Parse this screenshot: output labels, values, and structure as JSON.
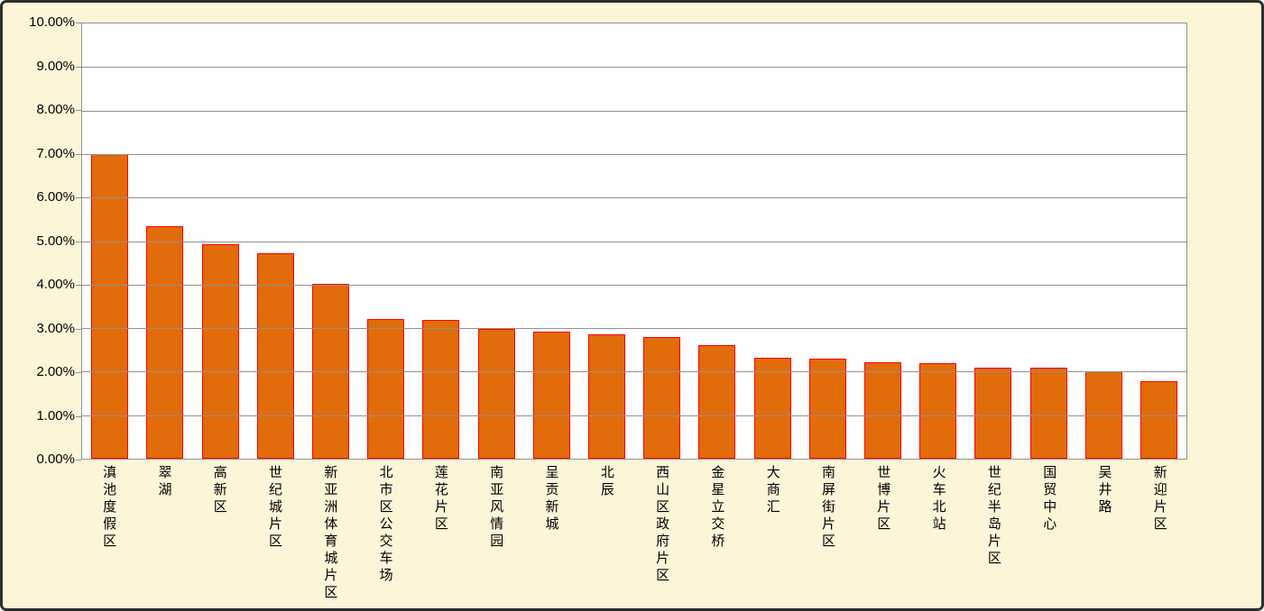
{
  "chart_data": {
    "type": "bar",
    "title": "",
    "xlabel": "",
    "ylabel": "",
    "legend": "none",
    "grid": "horizontal",
    "value_format": "percent",
    "ylim": [
      0,
      10
    ],
    "y_tick_step": 1,
    "y_tick_labels": [
      "10.00%",
      "9.00%",
      "8.00%",
      "7.00%",
      "6.00%",
      "5.00%",
      "4.00%",
      "3.00%",
      "2.00%",
      "1.00%",
      "0.00%"
    ],
    "categories": [
      "滇池度假区",
      "翠湖",
      "高新区",
      "世纪城片区",
      "新亚洲体育城片区",
      "北市区公交车场",
      "莲花片区",
      "南亚风情园",
      "呈贡新城",
      "北辰",
      "西山区政府片区",
      "金星立交桥",
      "大商汇",
      "南屏街片区",
      "世博片区",
      "火车北站",
      "世纪半岛片区",
      "国贸中心",
      "吴井路",
      "新迎片区"
    ],
    "values": [
      7.0,
      5.35,
      4.92,
      4.73,
      4.02,
      3.2,
      3.18,
      2.98,
      2.92,
      2.85,
      2.79,
      2.6,
      2.31,
      2.3,
      2.22,
      2.2,
      2.1,
      2.1,
      2.0,
      1.78
    ],
    "colors": {
      "bar_fill": "#E26B0A",
      "bar_border": "#FF0000",
      "plot_background": "#FFFFFF",
      "chart_background": "#FDF5D8",
      "gridline": "#919191",
      "axis_text": "#000000",
      "frame_border": "#2E2E2E"
    }
  }
}
